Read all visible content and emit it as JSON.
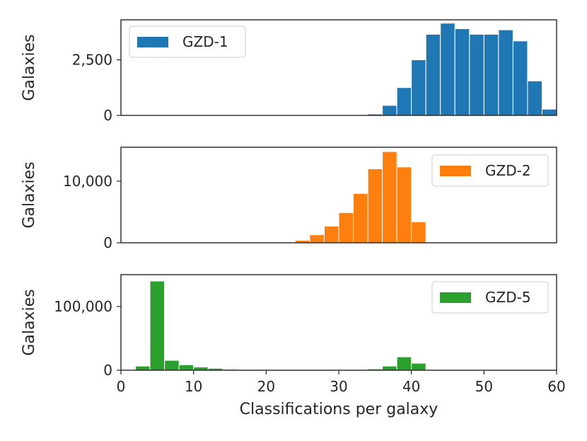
{
  "chart_data": {
    "type": "bar",
    "shared_xlabel": "Classifications per galaxy",
    "xlim": [
      0,
      60
    ],
    "xticks": [
      "0",
      "10",
      "20",
      "30",
      "40",
      "50",
      "60"
    ],
    "bin_width": 2,
    "panels": [
      {
        "name": "GZD-1",
        "color": "#1f77b4",
        "ylabel": "Galaxies",
        "ylim": [
          0,
          4300
        ],
        "yticks": [
          {
            "value": 0,
            "label": "0"
          },
          {
            "value": 2500,
            "label": "2,500"
          }
        ],
        "legend_position": "top-left",
        "bins": [
          {
            "x0": 34,
            "value": 60
          },
          {
            "x0": 36,
            "value": 450
          },
          {
            "x0": 38,
            "value": 1250
          },
          {
            "x0": 40,
            "value": 2500
          },
          {
            "x0": 42,
            "value": 3650
          },
          {
            "x0": 44,
            "value": 4150
          },
          {
            "x0": 46,
            "value": 3900
          },
          {
            "x0": 48,
            "value": 3650
          },
          {
            "x0": 50,
            "value": 3650
          },
          {
            "x0": 52,
            "value": 3850
          },
          {
            "x0": 54,
            "value": 3350
          },
          {
            "x0": 56,
            "value": 1550
          },
          {
            "x0": 58,
            "value": 280
          }
        ]
      },
      {
        "name": "GZD-2",
        "color": "#ff7f0e",
        "ylabel": "Galaxies",
        "ylim": [
          0,
          15500
        ],
        "yticks": [
          {
            "value": 0,
            "label": "0"
          },
          {
            "value": 10000,
            "label": "10,000"
          }
        ],
        "legend_position": "top-right",
        "bins": [
          {
            "x0": 24,
            "value": 400
          },
          {
            "x0": 26,
            "value": 1300
          },
          {
            "x0": 28,
            "value": 2700
          },
          {
            "x0": 30,
            "value": 4900
          },
          {
            "x0": 32,
            "value": 8000
          },
          {
            "x0": 34,
            "value": 12000
          },
          {
            "x0": 36,
            "value": 14800
          },
          {
            "x0": 38,
            "value": 12300
          },
          {
            "x0": 40,
            "value": 3400
          }
        ]
      },
      {
        "name": "GZD-5",
        "color": "#2ca02c",
        "ylabel": "Galaxies",
        "ylim": [
          0,
          150000
        ],
        "yticks": [
          {
            "value": 0,
            "label": "0"
          },
          {
            "value": 100000,
            "label": "100,000"
          }
        ],
        "legend_position": "top-right",
        "bins": [
          {
            "x0": 2,
            "value": 6500
          },
          {
            "x0": 4,
            "value": 140000
          },
          {
            "x0": 6,
            "value": 15500
          },
          {
            "x0": 8,
            "value": 8500
          },
          {
            "x0": 10,
            "value": 5000
          },
          {
            "x0": 12,
            "value": 3000
          },
          {
            "x0": 14,
            "value": 1500
          },
          {
            "x0": 16,
            "value": 500
          },
          {
            "x0": 18,
            "value": 300
          },
          {
            "x0": 20,
            "value": 200
          },
          {
            "x0": 22,
            "value": 200
          },
          {
            "x0": 24,
            "value": 200
          },
          {
            "x0": 26,
            "value": 200
          },
          {
            "x0": 28,
            "value": 200
          },
          {
            "x0": 30,
            "value": 200
          },
          {
            "x0": 32,
            "value": 400
          },
          {
            "x0": 34,
            "value": 2000
          },
          {
            "x0": 36,
            "value": 6500
          },
          {
            "x0": 38,
            "value": 21000
          },
          {
            "x0": 40,
            "value": 11000
          }
        ]
      }
    ]
  }
}
